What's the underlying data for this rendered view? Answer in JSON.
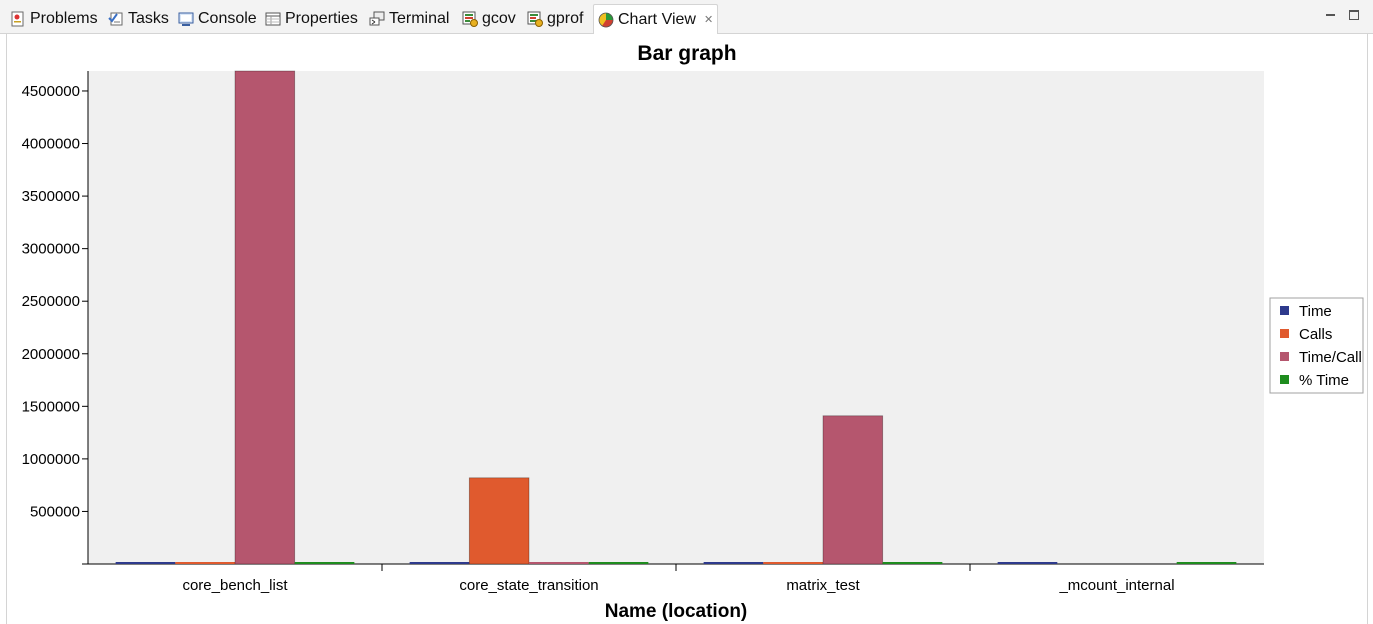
{
  "tabs": [
    {
      "label": "Problems",
      "icon": "problems-icon",
      "active": false
    },
    {
      "label": "Tasks",
      "icon": "tasks-icon",
      "active": false
    },
    {
      "label": "Console",
      "icon": "console-icon",
      "active": false
    },
    {
      "label": "Properties",
      "icon": "properties-icon",
      "active": false
    },
    {
      "label": "Terminal",
      "icon": "terminal-icon",
      "active": false
    },
    {
      "label": "gcov",
      "icon": "gcov-icon",
      "active": false
    },
    {
      "label": "gprof",
      "icon": "gprof-icon",
      "active": false
    },
    {
      "label": "Chart View",
      "icon": "chart-view-icon",
      "active": true
    }
  ],
  "tab_close_glyph": "✕",
  "chart_data": {
    "type": "bar",
    "title": "Bar graph",
    "xlabel": "Name (location)",
    "ylabel": "",
    "categories": [
      "core_bench_list",
      "core_state_transition",
      "matrix_test",
      "_mcount_internal"
    ],
    "series": [
      {
        "name": "Time",
        "color": "#2e3a8c",
        "values": [
          2,
          1,
          1,
          1
        ]
      },
      {
        "name": "Calls",
        "color": "#e05a2e",
        "values": [
          1,
          820000,
          1,
          0
        ]
      },
      {
        "name": "Time/Call",
        "color": "#b5566e",
        "values": [
          4690000,
          1,
          1410000,
          0
        ]
      },
      {
        "name": "% Time",
        "color": "#1e8c1e",
        "values": [
          40,
          20,
          20,
          20
        ]
      }
    ],
    "ylim": [
      0,
      4690000
    ],
    "yticks": [
      500000,
      1000000,
      1500000,
      2000000,
      2500000,
      3000000,
      3500000,
      4000000,
      4500000
    ],
    "legend_position": "right",
    "plot_background": "#f0f0f0"
  }
}
